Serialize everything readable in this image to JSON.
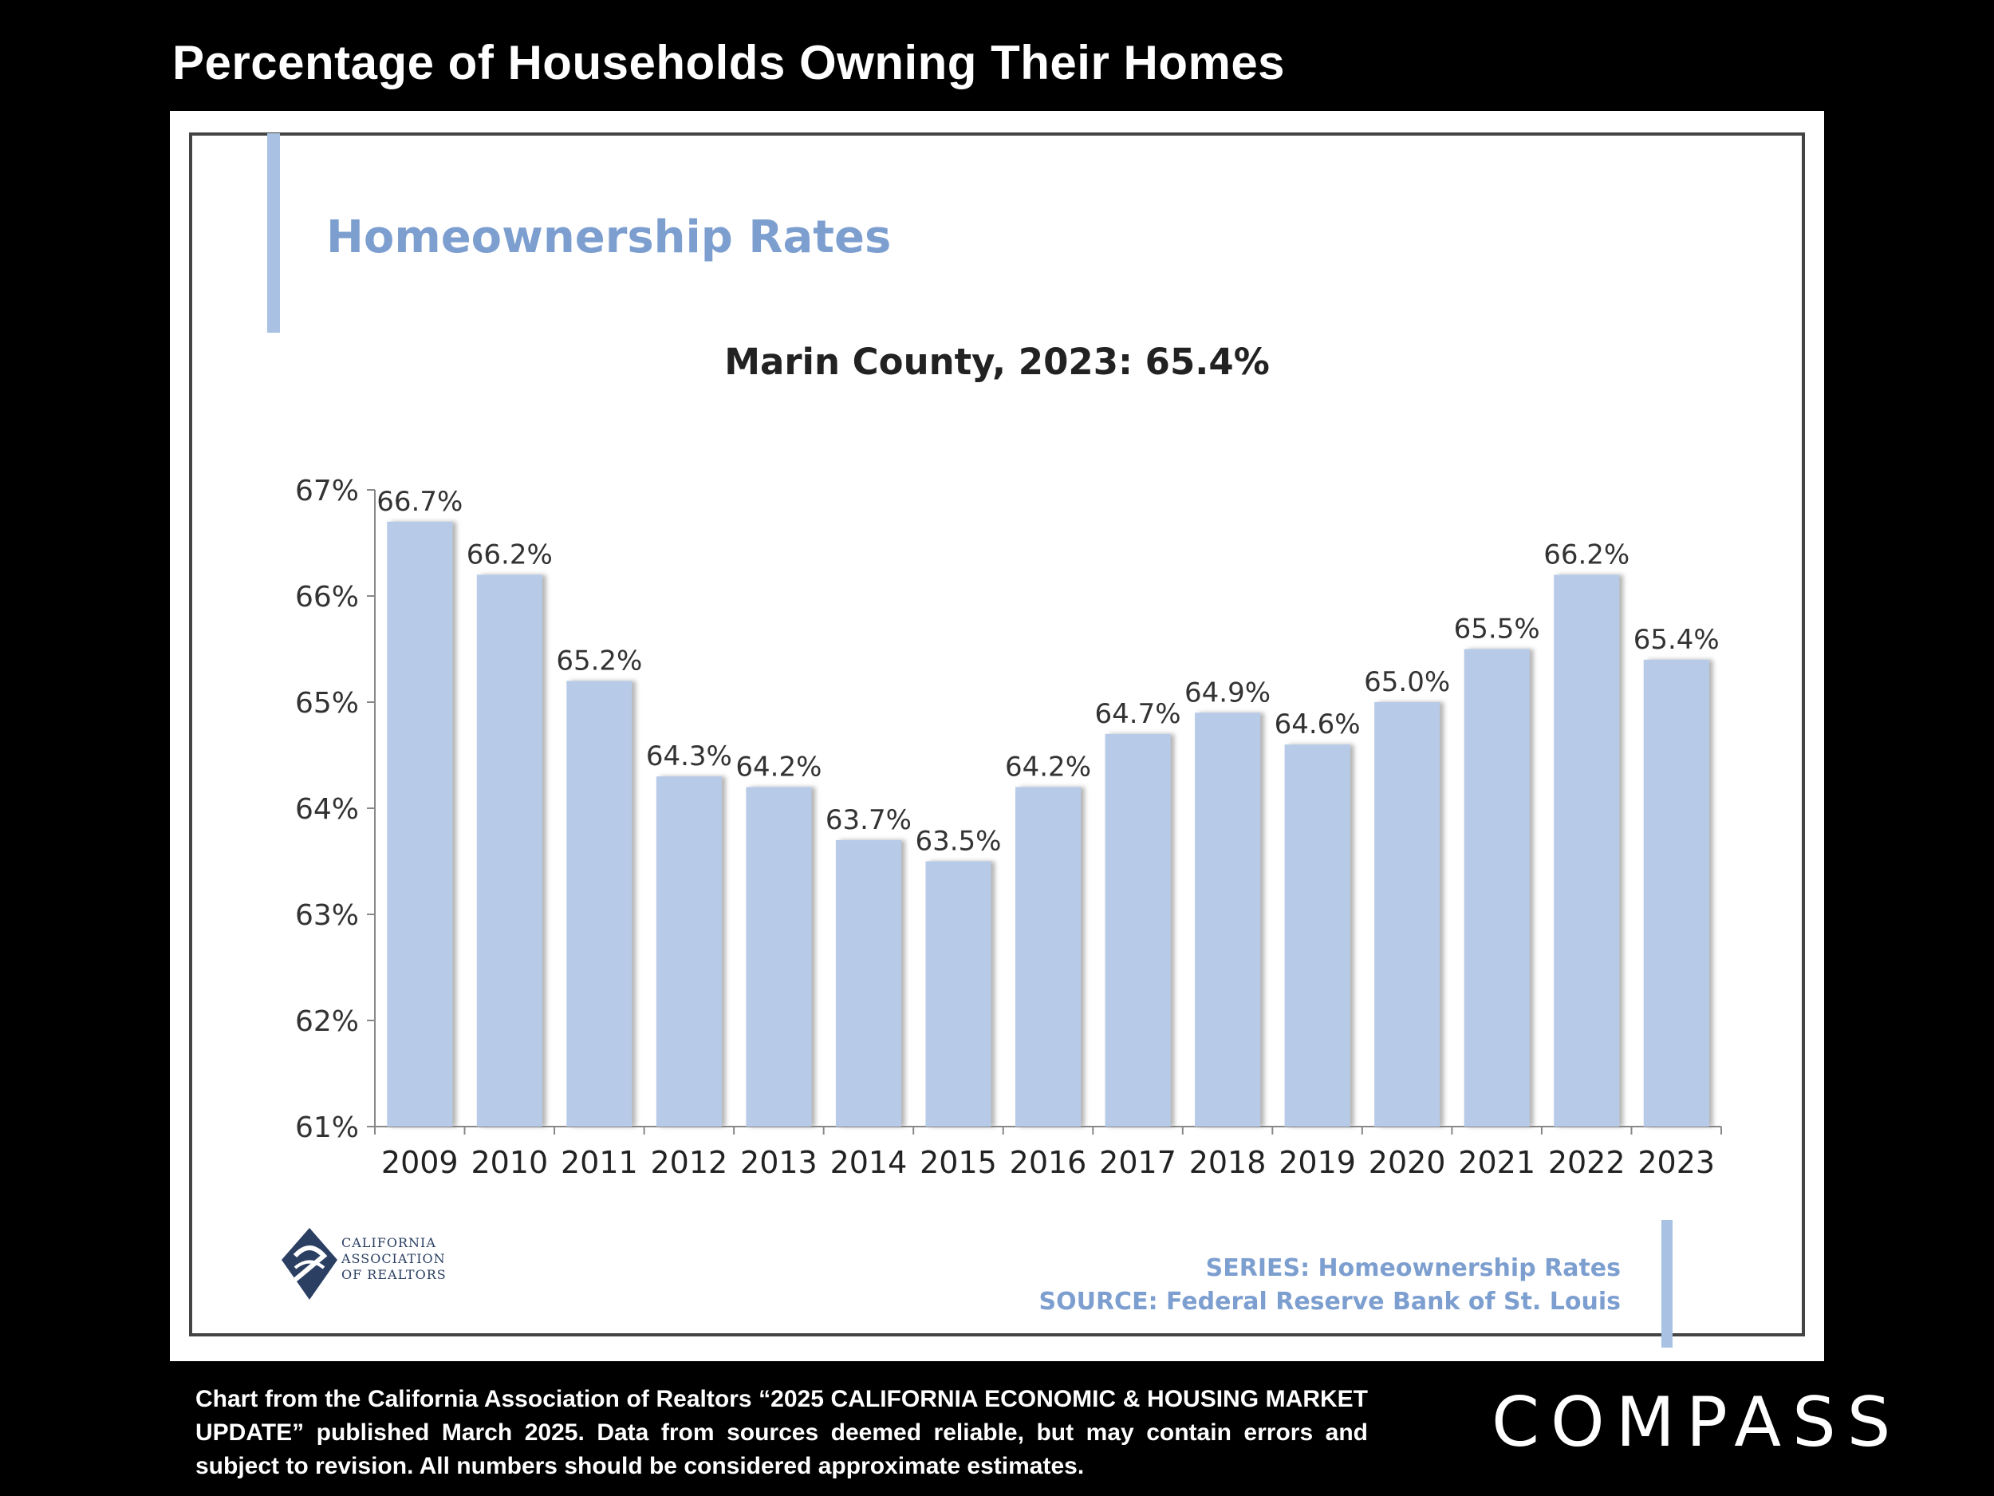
{
  "page": {
    "title": "Percentage of Households Owning Their Homes",
    "footnote": "Chart from the California Association of Realtors “2025 CALIFORNIA ECONOMIC & HOUSING MARKET UPDATE” published March 2025. Data from sources deemed reliable, but may contain errors and subject to revision. All numbers should be considered approximate estimates.",
    "brand": "COMPASS"
  },
  "panel": {
    "heading": "Homeownership Rates",
    "subtitle": "Marin County, 2023: 65.4%",
    "logo_text": "CALIFORNIA ASSOCIATION OF REALTORS",
    "series_line": "SERIES: Homeownership Rates",
    "source_line": "SOURCE: Federal Reserve Bank of St. Louis"
  },
  "colors": {
    "bar": "#b7cbe8",
    "accent": "#a9c1e2",
    "heading": "#7d9fd0"
  },
  "chart_data": {
    "type": "bar",
    "title": "Marin County, 2023: 65.4%",
    "categories": [
      "2009",
      "2010",
      "2011",
      "2012",
      "2013",
      "2014",
      "2015",
      "2016",
      "2017",
      "2018",
      "2019",
      "2020",
      "2021",
      "2022",
      "2023"
    ],
    "values": [
      66.7,
      66.2,
      65.2,
      64.3,
      64.2,
      63.7,
      63.5,
      64.2,
      64.7,
      64.9,
      64.6,
      65.0,
      65.5,
      66.2,
      65.4
    ],
    "data_labels": [
      "66.7%",
      "66.2%",
      "65.2%",
      "64.3%",
      "64.2%",
      "63.7%",
      "63.5%",
      "64.2%",
      "64.7%",
      "64.9%",
      "64.6%",
      "65.0%",
      "65.5%",
      "66.2%",
      "65.4%"
    ],
    "yticks": [
      61,
      62,
      63,
      64,
      65,
      66,
      67
    ],
    "ytick_labels": [
      "61%",
      "62%",
      "63%",
      "64%",
      "65%",
      "66%",
      "67%"
    ],
    "ylim": [
      61,
      67
    ],
    "xlabel": "",
    "ylabel": "",
    "grid": false,
    "legend": "none"
  }
}
